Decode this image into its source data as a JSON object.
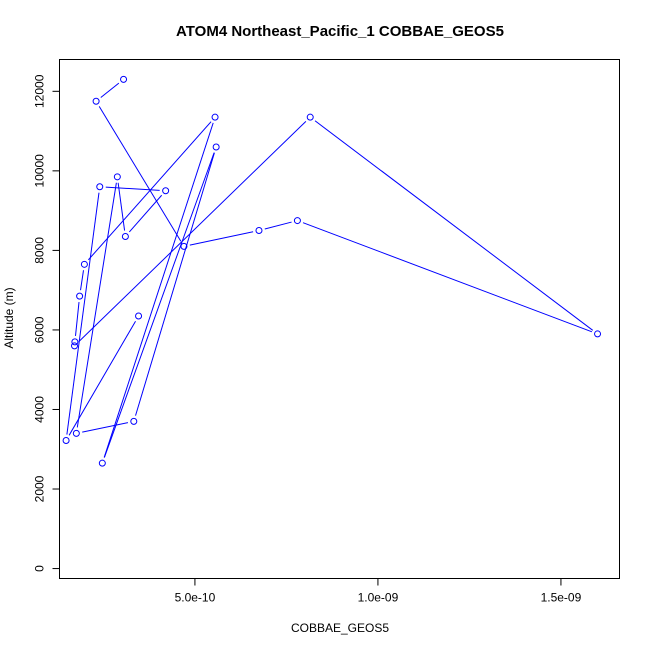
{
  "chart_data": {
    "type": "line",
    "title": "ATOM4 Northeast_Pacific_1 COBBAE_GEOS5",
    "xlabel": "COBBAE_GEOS5",
    "ylabel": "Altitude (m)",
    "xlim": [
      1.3e-10,
      1.66e-09
    ],
    "ylim": [
      -250,
      12800
    ],
    "grid": false,
    "legend": "none",
    "line_color": "#0000FF",
    "marker": "open-circle",
    "x_ticks": [
      {
        "value": 5e-10,
        "label": "5.0e-10"
      },
      {
        "value": 1e-09,
        "label": "1.0e-09"
      },
      {
        "value": 1.5e-09,
        "label": "1.5e-09"
      }
    ],
    "y_ticks": [
      {
        "value": 0,
        "label": "0"
      },
      {
        "value": 2000,
        "label": "2000"
      },
      {
        "value": 4000,
        "label": "4000"
      },
      {
        "value": 6000,
        "label": "6000"
      },
      {
        "value": 8000,
        "label": "8000"
      },
      {
        "value": 10000,
        "label": "10000"
      },
      {
        "value": 12000,
        "label": "12000"
      }
    ],
    "series": [
      {
        "x": [
          3.05e-10,
          2.3e-10,
          4.7e-10,
          6.75e-10,
          7.8e-10,
          1.6e-09,
          8.15e-10,
          1.71e-10,
          1.72e-10,
          1.85e-10,
          1.98e-10,
          5.55e-10,
          2.47e-10,
          5.58e-10,
          3.33e-10,
          1.76e-10,
          2.88e-10,
          3.1e-10,
          4.2e-10,
          2.4e-10,
          1.48e-10,
          3.46e-10
        ],
        "y": [
          12300,
          11750,
          8100,
          8500,
          8750,
          5900,
          11350,
          5600,
          5700,
          6850,
          7650,
          11350,
          2650,
          10600,
          3700,
          3400,
          9850,
          8350,
          9500,
          9600,
          3220,
          6350
        ]
      }
    ]
  }
}
